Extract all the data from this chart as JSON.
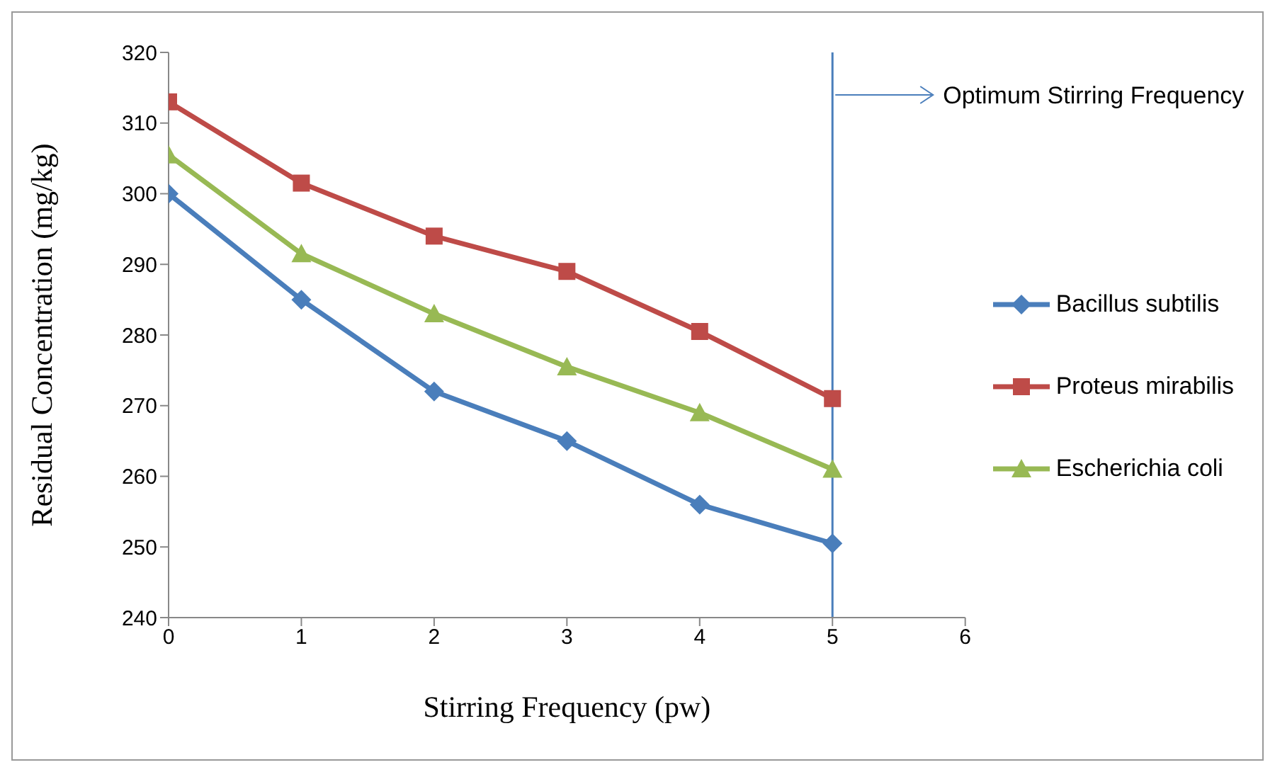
{
  "chart_data": {
    "type": "line",
    "xlabel": "Stirring Frequency (pw)",
    "ylabel": "Residual Concentration (mg/kg)",
    "x": [
      0,
      1,
      2,
      3,
      4,
      5
    ],
    "series": [
      {
        "name": "Bacillus subtilis",
        "color": "#4a7ebb",
        "marker": "diamond",
        "values": [
          300,
          285,
          272,
          265,
          256,
          250.5
        ]
      },
      {
        "name": "Proteus mirabilis",
        "color": "#be4b48",
        "marker": "square",
        "values": [
          313,
          301.5,
          294,
          289,
          280.5,
          271
        ]
      },
      {
        "name": "Escherichia coli",
        "color": "#98b954",
        "marker": "triangle",
        "values": [
          305.5,
          291.5,
          283,
          275.5,
          269,
          261
        ]
      }
    ],
    "xlim": [
      0,
      6
    ],
    "xticks": [
      0,
      1,
      2,
      3,
      4,
      5,
      6
    ],
    "ylim": [
      240,
      320
    ],
    "yticks": [
      240,
      250,
      260,
      270,
      280,
      290,
      300,
      310,
      320
    ],
    "ref_lines": [
      {
        "axis": "x",
        "value": 5,
        "label": "Optimum Stirring Frequency",
        "color": "#4a7ebb"
      }
    ],
    "grid": false,
    "legend": "right",
    "line_style": "solid"
  }
}
